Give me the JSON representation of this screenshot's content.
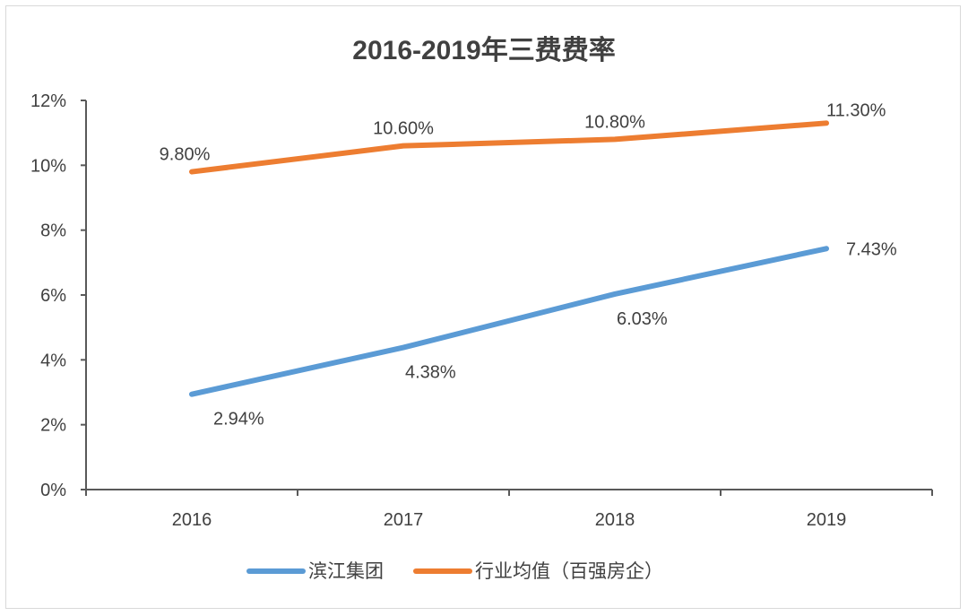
{
  "chart_data": {
    "type": "line",
    "title": "2016-2019年三费费率",
    "categories": [
      "2016",
      "2017",
      "2018",
      "2019"
    ],
    "ylim": [
      0,
      12
    ],
    "yticks": [
      0,
      2,
      4,
      6,
      8,
      10,
      12
    ],
    "ytick_labels": [
      "0%",
      "2%",
      "4%",
      "6%",
      "8%",
      "10%",
      "12%"
    ],
    "grid": false,
    "legend_position": "bottom",
    "series": [
      {
        "name": "滨江集团",
        "color": "#5b9bd5",
        "values": [
          2.94,
          4.38,
          6.03,
          7.43
        ],
        "labels": [
          "2.94%",
          "4.38%",
          "6.03%",
          "7.43%"
        ]
      },
      {
        "name": "行业均值（百强房企）",
        "color": "#ed7d31",
        "values": [
          9.8,
          10.6,
          10.8,
          11.3
        ],
        "labels": [
          "9.80%",
          "10.60%",
          "10.80%",
          "11.30%"
        ]
      }
    ]
  }
}
